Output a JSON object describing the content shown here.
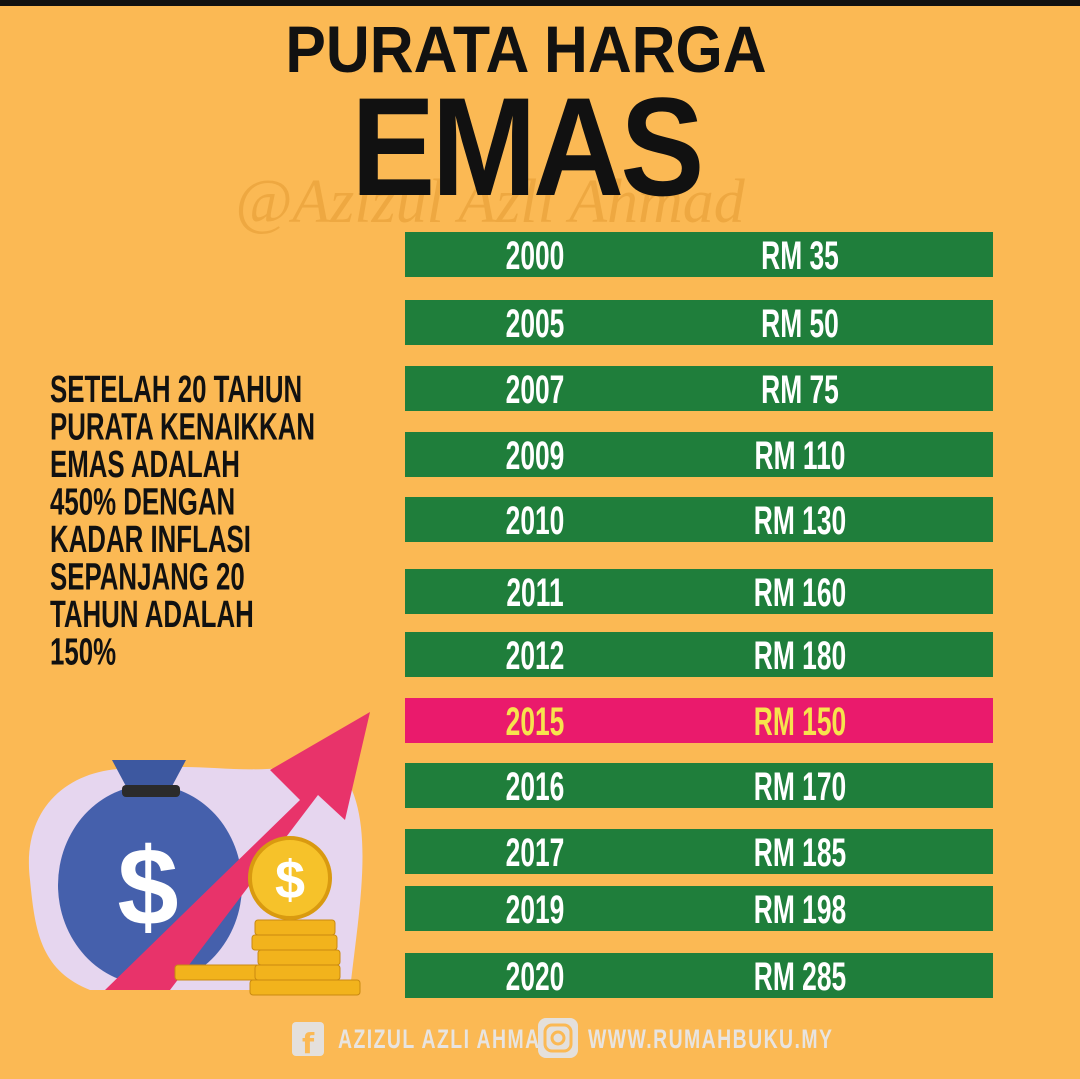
{
  "header": {
    "title_top": "PURATA HARGA",
    "title_main": "EMAS",
    "watermark": "@Azizul Azli Ahmad"
  },
  "side_note": {
    "lines": [
      "SETELAH 20 TAHUN",
      "PURATA KENAIKKAN",
      "EMAS ADALAH",
      "450% DENGAN",
      "KADAR INFLASI",
      "SEPANJANG 20",
      "TAHUN ADALAH",
      "150%"
    ]
  },
  "table": {
    "colors": {
      "row": "#1f7e3b",
      "text": "#ffffff",
      "highlight_row": "#ea1a6c",
      "highlight_text": "#f7e34d"
    },
    "rows": [
      {
        "year": "2000",
        "price": "RM 35"
      },
      {
        "year": "2005",
        "price": "RM 50"
      },
      {
        "year": "2007",
        "price": "RM 75"
      },
      {
        "year": "2009",
        "price": "RM 110"
      },
      {
        "year": "2010",
        "price": "RM 130"
      },
      {
        "year": "2011",
        "price": "RM 160"
      },
      {
        "year": "2012",
        "price": "RM 180"
      },
      {
        "year": "2015",
        "price": "RM 150",
        "highlight": true
      },
      {
        "year": "2016",
        "price": "RM 170"
      },
      {
        "year": "2017",
        "price": "RM 185"
      },
      {
        "year": "2019",
        "price": "RM 198"
      },
      {
        "year": "2020",
        "price": "RM 285"
      }
    ]
  },
  "illustration": {
    "bag_symbol": "$",
    "coin_symbol": "$"
  },
  "footer": {
    "facebook": "AZIZUL AZLI AHMAD",
    "website": "WWW.RUMAHBUKU.MY"
  }
}
